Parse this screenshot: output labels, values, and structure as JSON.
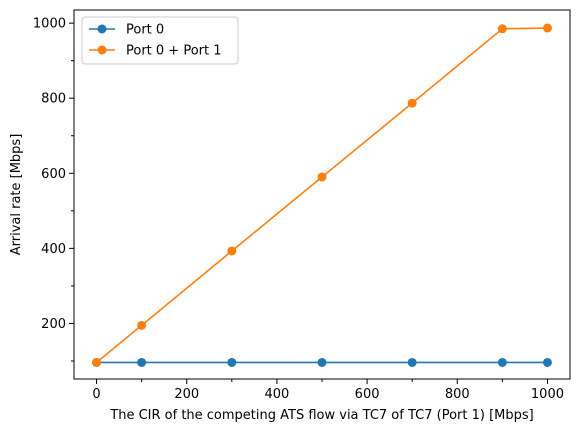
{
  "chart_data": {
    "type": "line",
    "title": "",
    "xlabel": "The CIR of the competing ATS flow via TC7 of TC7 (Port 1) [Mbps]",
    "ylabel": "Arrival rate [Mbps]",
    "xlim": [
      -50,
      1050
    ],
    "ylim": [
      52,
      1035
    ],
    "x_ticks": [
      0,
      200,
      400,
      600,
      800,
      1000
    ],
    "x_tick_labels": [
      "0",
      "200",
      "400",
      "600",
      "800",
      "1000"
    ],
    "x_minor_ticks": [
      100,
      300,
      500,
      700,
      900
    ],
    "y_ticks": [
      200,
      400,
      600,
      800,
      1000
    ],
    "y_tick_labels": [
      "200",
      "400",
      "600",
      "800",
      "1000"
    ],
    "y_minor_ticks": [
      100,
      300,
      500,
      700,
      900
    ],
    "grid": false,
    "legend_position": "top-left",
    "x": [
      0,
      100,
      300,
      500,
      700,
      900,
      1000
    ],
    "series": [
      {
        "name": "Port 0",
        "color": "#1f77b4",
        "values": [
          96,
          96,
          96,
          96,
          96,
          96,
          96
        ]
      },
      {
        "name": "Port 0 + Port 1",
        "color": "#ff7f0e",
        "values": [
          96,
          195,
          393,
          590,
          787,
          985,
          987
        ]
      }
    ]
  }
}
